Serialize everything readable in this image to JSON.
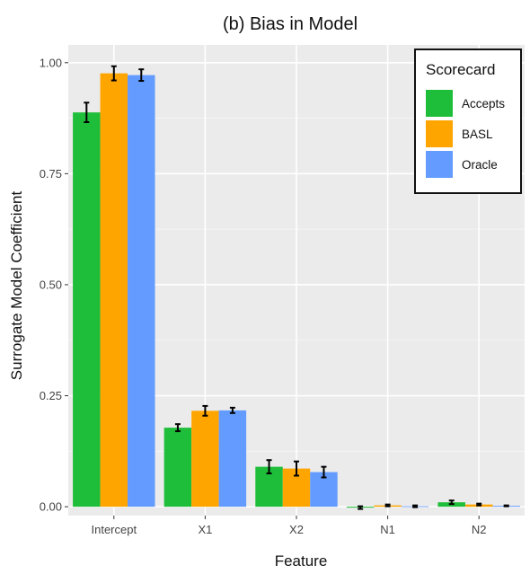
{
  "chart_data": {
    "type": "bar",
    "title": "(b) Bias in Model",
    "xlabel": "Feature",
    "ylabel": "Surrogate Model Coefficient",
    "categories": [
      "Intercept",
      "X1",
      "X2",
      "N1",
      "N2"
    ],
    "ylim": [
      -0.02,
      1.04
    ],
    "yticks": [
      0.0,
      0.25,
      0.5,
      0.75,
      1.0
    ],
    "ytick_labels": [
      "0.00",
      "0.25",
      "0.50",
      "0.75",
      "1.00"
    ],
    "grid": true,
    "legend": {
      "title": "Scorecard",
      "placement": "top-right"
    },
    "series": [
      {
        "name": "Accepts",
        "color": "#1fbe3a",
        "values": [
          0.888,
          0.178,
          0.09,
          -0.002,
          0.01
        ],
        "errors": [
          0.022,
          0.008,
          0.015,
          0.003,
          0.004
        ]
      },
      {
        "name": "BASL",
        "color": "#ffa500",
        "values": [
          0.976,
          0.216,
          0.086,
          0.003,
          0.005
        ],
        "errors": [
          0.016,
          0.011,
          0.016,
          0.002,
          0.002
        ]
      },
      {
        "name": "Oracle",
        "color": "#649bff",
        "values": [
          0.972,
          0.217,
          0.078,
          0.001,
          0.002
        ],
        "errors": [
          0.013,
          0.006,
          0.012,
          0.002,
          0.001
        ]
      }
    ]
  }
}
